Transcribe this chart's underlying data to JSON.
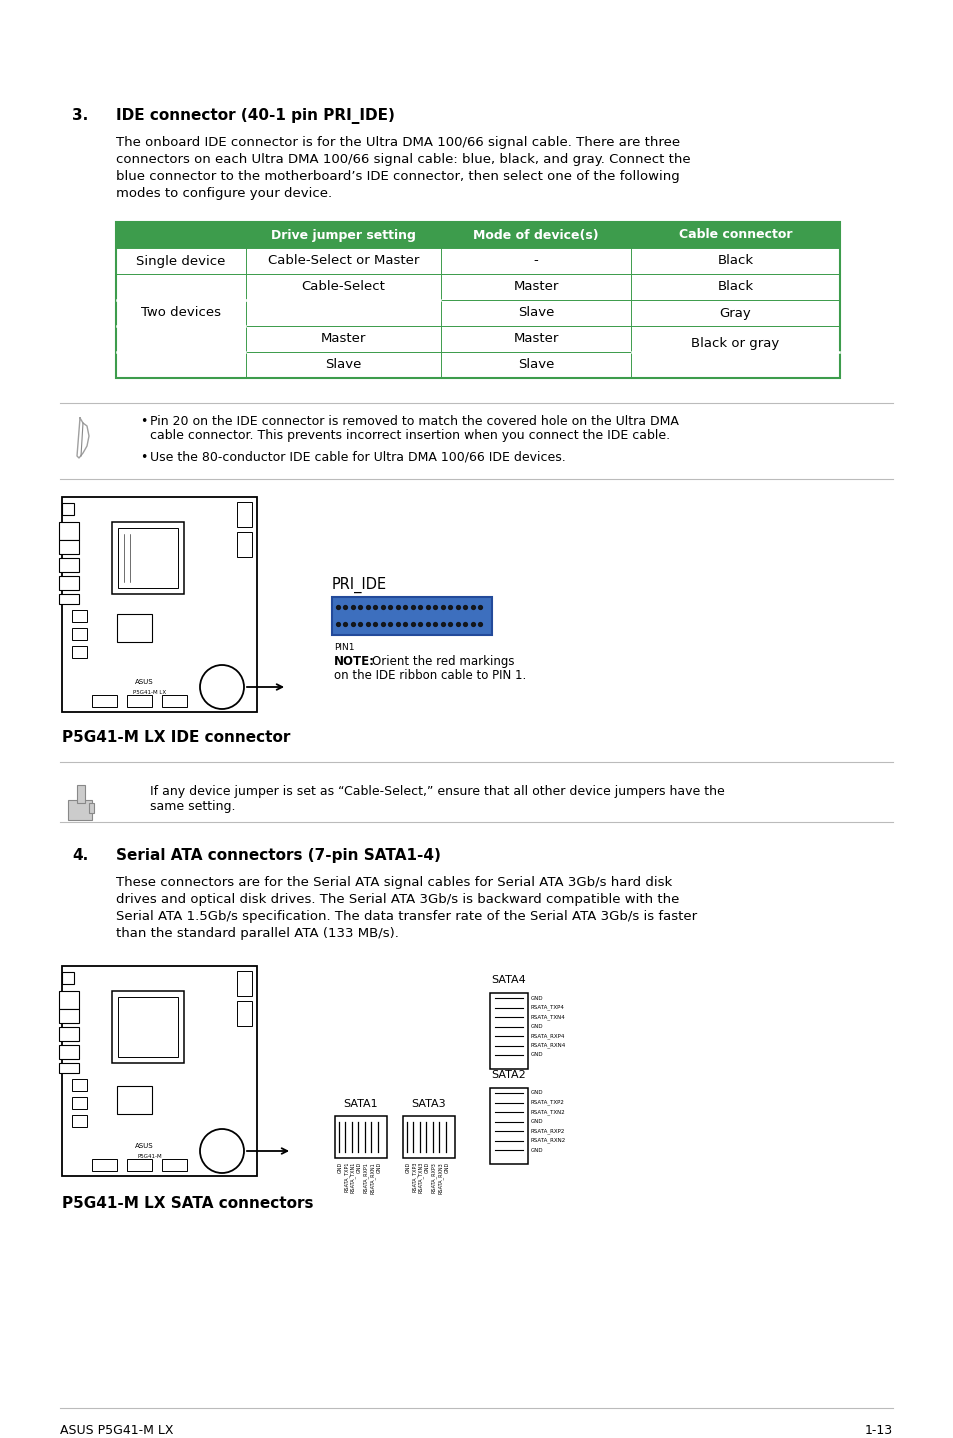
{
  "page_bg": "#ffffff",
  "table_header_bg": "#3d9c4c",
  "table_border_color": "#3d9c4c",
  "table_header_color": "#ffffff",
  "section3_num": "3.",
  "section3_title": "IDE connector (40-1 pin PRI_IDE)",
  "section3_body1": "The onboard IDE connector is for the Ultra DMA 100/66 signal cable. There are three",
  "section3_body2": "connectors on each Ultra DMA 100/66 signal cable: blue, black, and gray. Connect the",
  "section3_body3": "blue connector to the motherboard’s IDE connector, then select one of the following",
  "section3_body4": "modes to configure your device.",
  "table_col1_header": "Drive jumper setting",
  "table_col2_header": "Mode of device(s)",
  "table_col3_header": "Cable connector",
  "ide_label": "PRI_IDE",
  "ide_connector_color": "#3d6fbe",
  "ide_note_pin": "PIN1",
  "ide_note_bold": "NOTE:",
  "ide_note_text": "Orient the red markings",
  "ide_note_text2": "on the IDE ribbon cable to PIN 1.",
  "ide_caption": "P5G41-M LX IDE connector",
  "hand_note1": "If any device jumper is set as “Cable-Select,” ensure that all other device jumpers have the",
  "hand_note2": "same setting.",
  "section4_num": "4.",
  "section4_title": "Serial ATA connectors (7-pin SATA1-4)",
  "section4_body1": "These connectors are for the Serial ATA signal cables for Serial ATA 3Gb/s hard disk",
  "section4_body2": "drives and optical disk drives. The Serial ATA 3Gb/s is backward compatible with the",
  "section4_body3": "Serial ATA 1.5Gb/s specification. The data transfer rate of the Serial ATA 3Gb/s is faster",
  "section4_body4": "than the standard parallel ATA (133 MB/s).",
  "sata_caption": "P5G41-M LX SATA connectors",
  "footer_left": "ASUS P5G41-M LX",
  "footer_right": "1-13",
  "text_color": "#000000",
  "sep_color": "#bbbbbb",
  "note1_text1": "Pin 20 on the IDE connector is removed to match the covered hole on the Ultra DMA",
  "note1_text2": "cable connector. This prevents incorrect insertion when you connect the IDE cable.",
  "note2_text": "Use the 80-conductor IDE cable for Ultra DMA 100/66 IDE devices."
}
